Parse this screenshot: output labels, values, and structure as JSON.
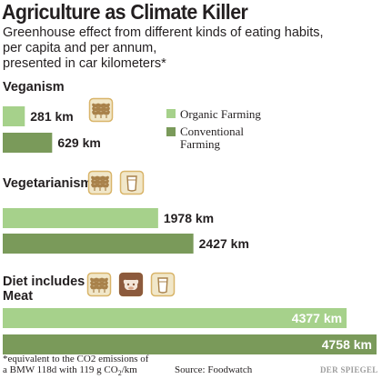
{
  "title": "Agriculture as Climate Killer",
  "subtitle": {
    "line1": "Greenhouse effect from different kinds of eating habits,",
    "line2": "per capita and per annum,",
    "line3": "presented in car kilometers*"
  },
  "footnote": {
    "line1": "*equivalent to the CO2 emissions of",
    "line2_prefix": "a BMW 118d with 119 g CO",
    "line2_sub": "2",
    "line2_suffix": "/km"
  },
  "source": "Source: Foodwatch",
  "logo": "DER SPIEGEL",
  "colors": {
    "organic": "#a6d18b",
    "conventional": "#7a9a5a",
    "icon_bg": "#f1e7c9",
    "icon_border": "#d9b56a",
    "grain": "#a8814a",
    "cow": "#8c5a3c"
  },
  "chart_data": {
    "type": "bar",
    "orientation": "horizontal",
    "unit": "km",
    "legend_position": "right of Veganism group",
    "series": [
      {
        "name": "Organic Farming",
        "color": "#a6d18b"
      },
      {
        "name": "Conventional Farming",
        "color": "#7a9a5a"
      }
    ],
    "groups": [
      {
        "name": "Veganism",
        "label_lines": [
          "Veganism"
        ],
        "icons": [
          "grain-icon"
        ],
        "values": [
          281,
          629
        ],
        "labels": [
          "281 km",
          "629 km"
        ]
      },
      {
        "name": "Vegetarianism",
        "label_lines": [
          "Vegetarianism"
        ],
        "icons": [
          "grain-icon",
          "milk-icon"
        ],
        "values": [
          1978,
          2427
        ],
        "labels": [
          "1978 km",
          "2427 km"
        ]
      },
      {
        "name": "Diet includes Meat",
        "label_lines": [
          "Diet includes",
          "Meat"
        ],
        "icons": [
          "grain-icon",
          "cow-icon",
          "milk-icon"
        ],
        "values": [
          4377,
          4758
        ],
        "labels": [
          "4377 km",
          "4758 km"
        ]
      }
    ],
    "legend": {
      "organic_label": "Organic Farming",
      "conventional_line1": "Conventional",
      "conventional_line2": "Farming"
    }
  }
}
